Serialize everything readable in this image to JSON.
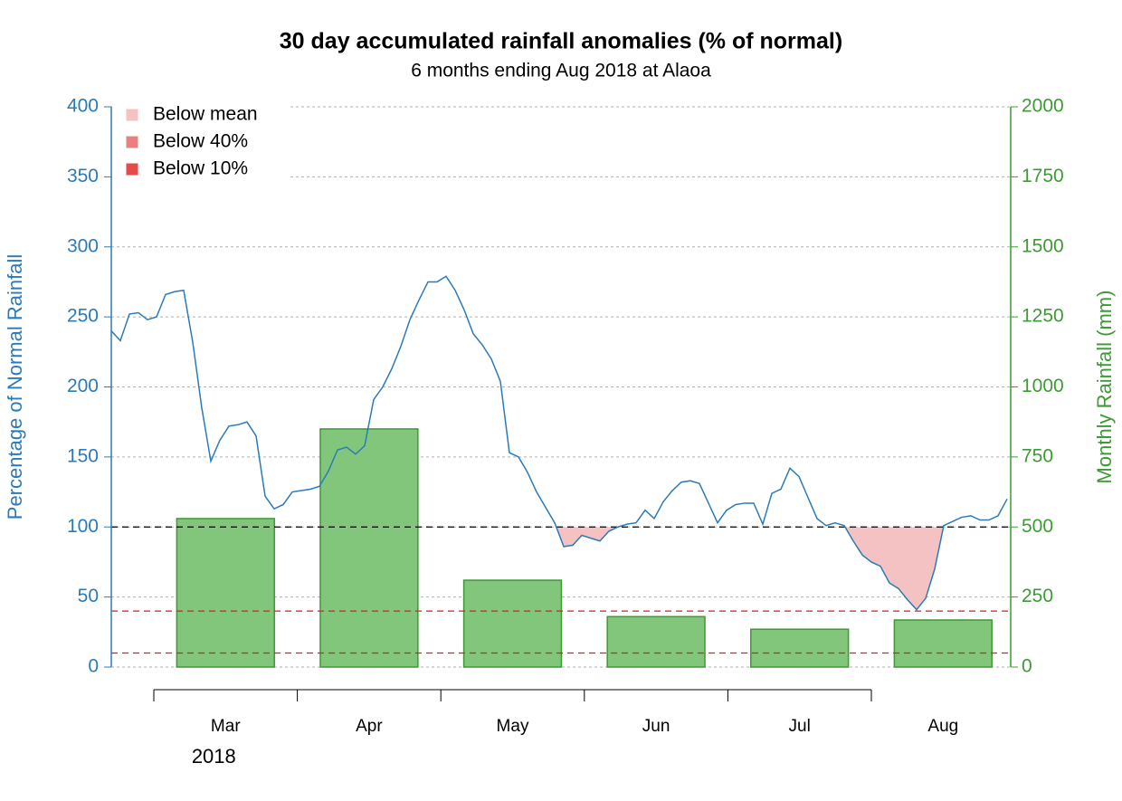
{
  "chart_data": {
    "type": "combo",
    "title": "30 day accumulated rainfall anomalies (% of normal)",
    "subtitle": "6 months ending Aug 2018 at Alaoa",
    "ylabel": "Percentage of Normal Rainfall",
    "y2label": "Monthly Rainfall (mm)",
    "categories": [
      "Mar",
      "Apr",
      "May",
      "Jun",
      "Jul",
      "Aug"
    ],
    "year_label": "2018",
    "ylim": [
      0,
      400
    ],
    "yticks": [
      0,
      50,
      100,
      150,
      200,
      250,
      300,
      350,
      400
    ],
    "y2lim": [
      0,
      2000
    ],
    "y2ticks": [
      0,
      250,
      500,
      750,
      1000,
      1250,
      1500,
      1750,
      2000
    ],
    "grid": true,
    "axis_colors": {
      "y": "#2b7bba",
      "y2": "#3d9a34"
    },
    "bars": {
      "axis": "y2",
      "color": "#82c67c",
      "edge_color": "#3d9a34",
      "values": [
        530,
        850,
        310,
        180,
        135,
        168
      ]
    },
    "line": {
      "color": "#2b7bba",
      "values": [
        240,
        233,
        252,
        253,
        248,
        250,
        266,
        268,
        269,
        232,
        185,
        147,
        162,
        172,
        173,
        175,
        165,
        122,
        113,
        116,
        125,
        126,
        127,
        129,
        140,
        155,
        157,
        152,
        158,
        191,
        200,
        213,
        229,
        248,
        262,
        275,
        275,
        279,
        269,
        255,
        238,
        230,
        220,
        204,
        153,
        150,
        139,
        125,
        114,
        103,
        86,
        87,
        94,
        92,
        90,
        97,
        100,
        102,
        103,
        112,
        106,
        118,
        126,
        132,
        133,
        131,
        117,
        103,
        112,
        116,
        117,
        117,
        102,
        124,
        127,
        142,
        136,
        121,
        106,
        101,
        103,
        101,
        90,
        80,
        75,
        72,
        60,
        56,
        48,
        41,
        49,
        70,
        101,
        104,
        107,
        108,
        105,
        105,
        108,
        120
      ]
    },
    "reference_lines": [
      {
        "value": 100,
        "color": "#000000"
      },
      {
        "value": 40,
        "color": "#e31a1c"
      },
      {
        "value": 10,
        "color": "#e31a1c"
      }
    ],
    "legend": {
      "corner": "top-left",
      "entries": [
        {
          "name": "Below mean",
          "color": "#f4c2c2",
          "threshold": 100
        },
        {
          "name": "Below 40%",
          "color": "#e88080",
          "threshold": 40
        },
        {
          "name": "Below 10%",
          "color": "#e64a4a",
          "threshold": 10
        }
      ]
    }
  }
}
